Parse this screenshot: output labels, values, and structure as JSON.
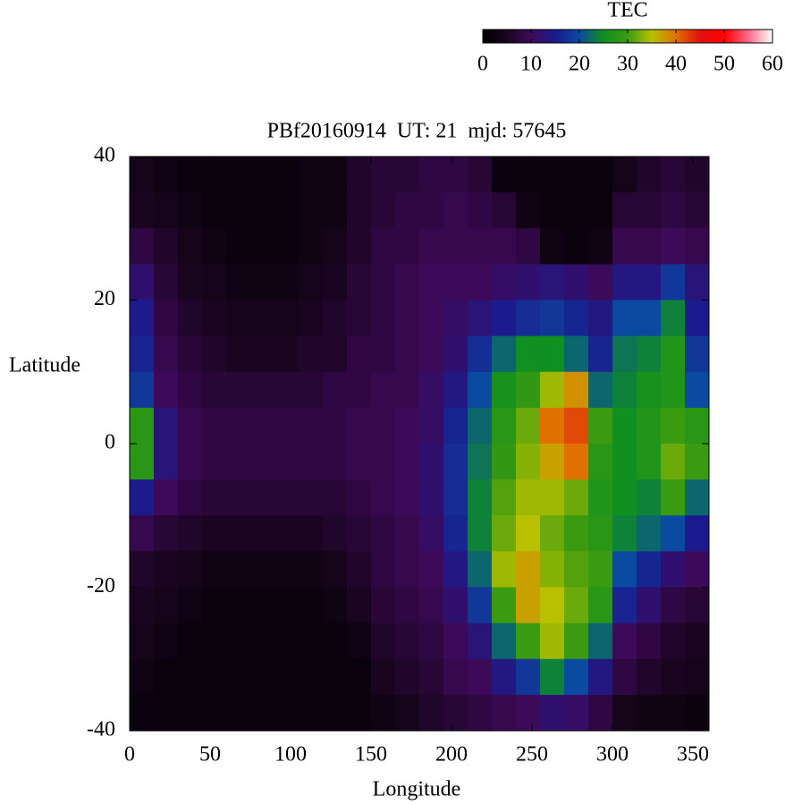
{
  "chart_data": {
    "type": "heatmap",
    "title": "PBf20160914  UT: 21  mjd: 57645",
    "x_label": "Longitude",
    "y_label": "Latitude",
    "colorbar_title": "TEC",
    "xlim": [
      0,
      360
    ],
    "ylim": [
      -40,
      40
    ],
    "xticks": [
      0,
      50,
      100,
      150,
      200,
      250,
      300,
      350
    ],
    "yticks": [
      -40,
      -20,
      0,
      20,
      40
    ],
    "zlim": [
      0,
      60
    ],
    "colorbar_ticks": [
      0,
      10,
      20,
      30,
      40,
      50,
      60
    ],
    "colormap": [
      "#000000",
      "#1a0520",
      "#3d0a5a",
      "#1c1a8c",
      "#0a4aa0",
      "#109020",
      "#3a9a10",
      "#b8c000",
      "#e07000",
      "#e01010",
      "#ff0000",
      "#ff6a8a",
      "#ffffff"
    ],
    "x": [
      7.5,
      22.5,
      37.5,
      52.5,
      67.5,
      82.5,
      97.5,
      112.5,
      127.5,
      142.5,
      157.5,
      172.5,
      187.5,
      202.5,
      217.5,
      232.5,
      247.5,
      262.5,
      277.5,
      292.5,
      307.5,
      322.5,
      337.5,
      352.5
    ],
    "y": [
      37.5,
      32.5,
      27.5,
      22.5,
      17.5,
      12.5,
      7.5,
      2.5,
      -2.5,
      -7.5,
      -12.5,
      -17.5,
      -22.5,
      -27.5,
      -32.5,
      -37.5
    ],
    "z": [
      [
        4,
        3,
        2,
        2,
        2,
        2,
        2,
        3,
        3,
        6,
        7,
        7,
        8,
        8,
        7,
        2,
        2,
        2,
        2,
        2,
        4,
        6,
        7,
        6
      ],
      [
        5,
        4,
        3,
        2,
        2,
        2,
        2,
        3,
        3,
        6,
        7,
        8,
        8,
        9,
        8,
        7,
        3,
        2,
        2,
        2,
        7,
        7,
        8,
        7
      ],
      [
        8,
        6,
        4,
        3,
        2,
        2,
        2,
        3,
        4,
        6,
        8,
        8,
        9,
        9,
        9,
        9,
        8,
        3,
        2,
        3,
        9,
        9,
        10,
        9
      ],
      [
        12,
        7,
        5,
        4,
        3,
        3,
        3,
        4,
        5,
        7,
        8,
        9,
        10,
        10,
        10,
        11,
        12,
        13,
        12,
        10,
        14,
        14,
        18,
        13
      ],
      [
        15,
        8,
        6,
        5,
        4,
        4,
        4,
        5,
        6,
        7,
        8,
        9,
        10,
        11,
        13,
        15,
        17,
        18,
        16,
        14,
        20,
        20,
        24,
        15
      ],
      [
        16,
        9,
        7,
        6,
        5,
        5,
        5,
        6,
        6,
        8,
        8,
        9,
        10,
        12,
        17,
        22,
        25,
        25,
        22,
        16,
        23,
        24,
        27,
        18
      ],
      [
        18,
        10,
        8,
        7,
        7,
        7,
        7,
        7,
        8,
        8,
        9,
        9,
        11,
        14,
        20,
        26,
        29,
        34,
        38,
        22,
        24,
        26,
        27,
        20
      ],
      [
        28,
        13,
        9,
        8,
        8,
        8,
        8,
        8,
        8,
        9,
        9,
        10,
        11,
        16,
        22,
        28,
        32,
        40,
        42,
        30,
        25,
        27,
        30,
        28
      ],
      [
        28,
        13,
        9,
        8,
        8,
        8,
        8,
        8,
        8,
        9,
        9,
        10,
        12,
        17,
        23,
        29,
        33,
        37,
        40,
        28,
        25,
        27,
        32,
        30
      ],
      [
        15,
        10,
        8,
        7,
        7,
        7,
        7,
        7,
        7,
        8,
        9,
        10,
        12,
        17,
        24,
        31,
        34,
        34,
        32,
        27,
        25,
        24,
        30,
        22
      ],
      [
        9,
        7,
        6,
        5,
        5,
        5,
        5,
        5,
        6,
        7,
        8,
        9,
        11,
        16,
        24,
        32,
        35,
        32,
        30,
        28,
        24,
        22,
        20,
        15
      ],
      [
        6,
        5,
        4,
        3,
        3,
        3,
        3,
        3,
        4,
        6,
        8,
        9,
        10,
        14,
        22,
        34,
        37,
        33,
        31,
        30,
        20,
        16,
        12,
        10
      ],
      [
        5,
        4,
        3,
        2,
        2,
        2,
        2,
        2,
        3,
        5,
        7,
        8,
        9,
        12,
        18,
        30,
        37,
        35,
        32,
        28,
        16,
        12,
        8,
        7
      ],
      [
        4,
        3,
        2,
        2,
        2,
        2,
        2,
        2,
        2,
        3,
        6,
        7,
        8,
        10,
        13,
        22,
        30,
        34,
        30,
        22,
        10,
        8,
        6,
        5
      ],
      [
        3,
        2,
        2,
        2,
        2,
        2,
        2,
        2,
        2,
        2,
        5,
        6,
        7,
        9,
        10,
        14,
        18,
        24,
        20,
        14,
        8,
        6,
        5,
        4
      ],
      [
        2,
        2,
        2,
        2,
        2,
        2,
        2,
        2,
        2,
        2,
        3,
        4,
        6,
        7,
        8,
        9,
        10,
        12,
        11,
        8,
        4,
        3,
        3,
        2
      ]
    ]
  }
}
